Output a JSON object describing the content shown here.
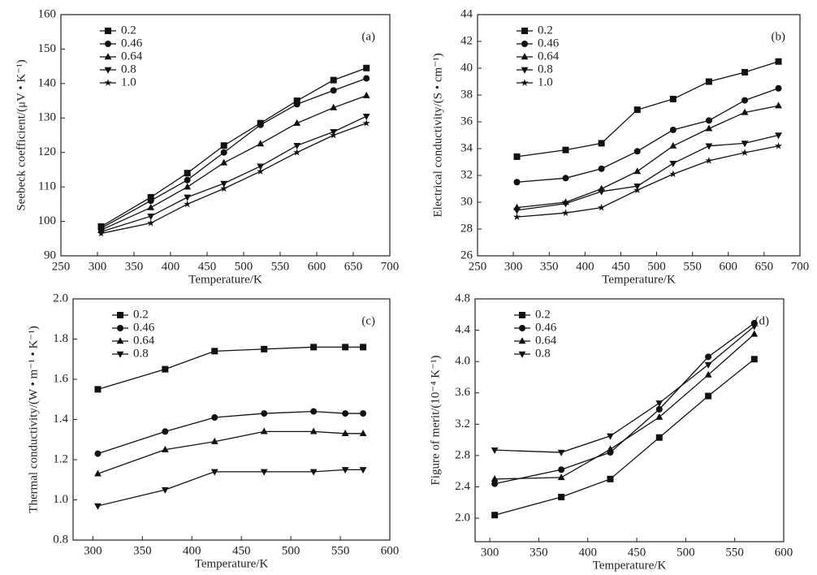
{
  "chart_data": [
    {
      "type": "line",
      "annotation": "(a)",
      "xlabel": "Temperature/K",
      "ylabel": "Seebeck coefficient/(μV • K⁻¹)",
      "x": [
        305,
        373,
        423,
        473,
        523,
        573,
        623,
        668
      ],
      "xlim": [
        250,
        700
      ],
      "xticks": [
        250,
        300,
        350,
        400,
        450,
        500,
        550,
        600,
        650,
        700
      ],
      "ylim": [
        90,
        160
      ],
      "yticks": [
        90,
        100,
        110,
        120,
        130,
        140,
        150,
        160
      ],
      "series": [
        {
          "name": "0.2",
          "color": "#111111",
          "marker": "square",
          "values": [
            98.5,
            107,
            114,
            122,
            128.5,
            135,
            141,
            144.5
          ]
        },
        {
          "name": "0.46",
          "color": "#111111",
          "marker": "circle",
          "values": [
            98,
            106,
            112,
            120,
            128,
            134,
            138,
            141.5
          ]
        },
        {
          "name": "0.64",
          "color": "#111111",
          "marker": "triangle-up",
          "values": [
            97.5,
            104,
            110,
            117,
            122.5,
            128.5,
            133,
            136.5
          ]
        },
        {
          "name": "0.8",
          "color": "#111111",
          "marker": "triangle-down",
          "values": [
            97,
            101.5,
            107,
            111,
            116,
            122,
            126,
            130.5
          ]
        },
        {
          "name": "1.0",
          "color": "#111111",
          "marker": "star",
          "values": [
            96.5,
            99.5,
            105,
            109.5,
            114.5,
            120,
            125,
            128.5
          ]
        }
      ]
    },
    {
      "type": "line",
      "annotation": "(b)",
      "xlabel": "Temperature/K",
      "ylabel": "Electrical conductivity/(S • cm⁻¹)",
      "x": [
        305,
        373,
        423,
        473,
        523,
        573,
        623,
        670
      ],
      "xlim": [
        250,
        700
      ],
      "xticks": [
        250,
        300,
        350,
        400,
        450,
        500,
        550,
        600,
        650,
        700
      ],
      "ylim": [
        26,
        44
      ],
      "yticks": [
        26,
        28,
        30,
        32,
        34,
        36,
        38,
        40,
        42,
        44
      ],
      "series": [
        {
          "name": "0.2",
          "color": "#111111",
          "marker": "square",
          "values": [
            33.4,
            33.9,
            34.4,
            36.9,
            37.7,
            39.0,
            39.7,
            40.5
          ]
        },
        {
          "name": "0.46",
          "color": "#111111",
          "marker": "circle",
          "values": [
            31.5,
            31.8,
            32.5,
            33.8,
            35.4,
            36.1,
            37.6,
            38.5
          ]
        },
        {
          "name": "0.64",
          "color": "#111111",
          "marker": "triangle-up",
          "values": [
            29.6,
            30.0,
            31.0,
            32.3,
            34.2,
            35.5,
            36.7,
            37.2
          ]
        },
        {
          "name": "0.8",
          "color": "#111111",
          "marker": "triangle-down",
          "values": [
            29.4,
            29.9,
            30.8,
            31.2,
            32.9,
            34.2,
            34.4,
            35.0
          ]
        },
        {
          "name": "1.0",
          "color": "#111111",
          "marker": "star",
          "values": [
            28.9,
            29.2,
            29.6,
            30.9,
            32.1,
            33.1,
            33.7,
            34.2
          ]
        }
      ]
    },
    {
      "type": "line",
      "annotation": "(c)",
      "xlabel": "Temperature/K",
      "ylabel": "Thermal conductivity/(W • m⁻¹ • K⁻¹)",
      "x": [
        305,
        373,
        423,
        473,
        523,
        555,
        573
      ],
      "xlim": [
        280,
        600
      ],
      "xticks": [
        300,
        350,
        400,
        450,
        500,
        550,
        600
      ],
      "ylim": [
        0.8,
        2.0
      ],
      "yticks": [
        0.8,
        {
          "value": 1,
          "label": "1.0"
        },
        1.2,
        1.4,
        1.6,
        1.8,
        {
          "value": 2,
          "label": "2.0"
        }
      ],
      "series": [
        {
          "name": "0.2",
          "color": "#111111",
          "marker": "square",
          "values": [
            1.55,
            1.65,
            1.74,
            1.75,
            1.76,
            1.76,
            1.76
          ]
        },
        {
          "name": "0.46",
          "color": "#111111",
          "marker": "circle",
          "values": [
            1.23,
            1.34,
            1.41,
            1.43,
            1.44,
            1.43,
            1.43
          ]
        },
        {
          "name": "0.64",
          "color": "#111111",
          "marker": "triangle-up",
          "values": [
            1.13,
            1.25,
            1.29,
            1.34,
            1.34,
            1.33,
            1.33
          ]
        },
        {
          "name": "0.8",
          "color": "#111111",
          "marker": "triangle-down",
          "values": [
            0.97,
            1.05,
            1.14,
            1.14,
            1.14,
            1.15,
            1.15
          ]
        }
      ]
    },
    {
      "type": "line",
      "annotation": "(d)",
      "xlabel": "Temperature/K",
      "ylabel": "Figure of merit/(10⁻⁴ K⁻¹)",
      "x": [
        305,
        373,
        423,
        473,
        523,
        570
      ],
      "xlim": [
        285,
        600
      ],
      "xticks": [
        300,
        350,
        400,
        450,
        500,
        550,
        600
      ],
      "ylim": [
        1.7,
        4.8
      ],
      "yticks": [
        {
          "value": 2,
          "label": "2.0"
        },
        2.4,
        2.8,
        3.2,
        3.6,
        {
          "value": 4,
          "label": "4.0"
        },
        4.4,
        4.8
      ],
      "series": [
        {
          "name": "0.2",
          "color": "#111111",
          "marker": "square",
          "values": [
            2.04,
            2.27,
            2.5,
            3.03,
            3.56,
            4.03
          ]
        },
        {
          "name": "0.46",
          "color": "#111111",
          "marker": "circle",
          "values": [
            2.44,
            2.62,
            2.84,
            3.39,
            4.06,
            4.49
          ]
        },
        {
          "name": "0.64",
          "color": "#111111",
          "marker": "triangle-up",
          "values": [
            2.5,
            2.52,
            2.88,
            3.29,
            3.83,
            4.35
          ]
        },
        {
          "name": "0.8",
          "color": "#111111",
          "marker": "triangle-down",
          "values": [
            2.87,
            2.84,
            3.05,
            3.47,
            3.96,
            4.45
          ]
        }
      ]
    }
  ]
}
